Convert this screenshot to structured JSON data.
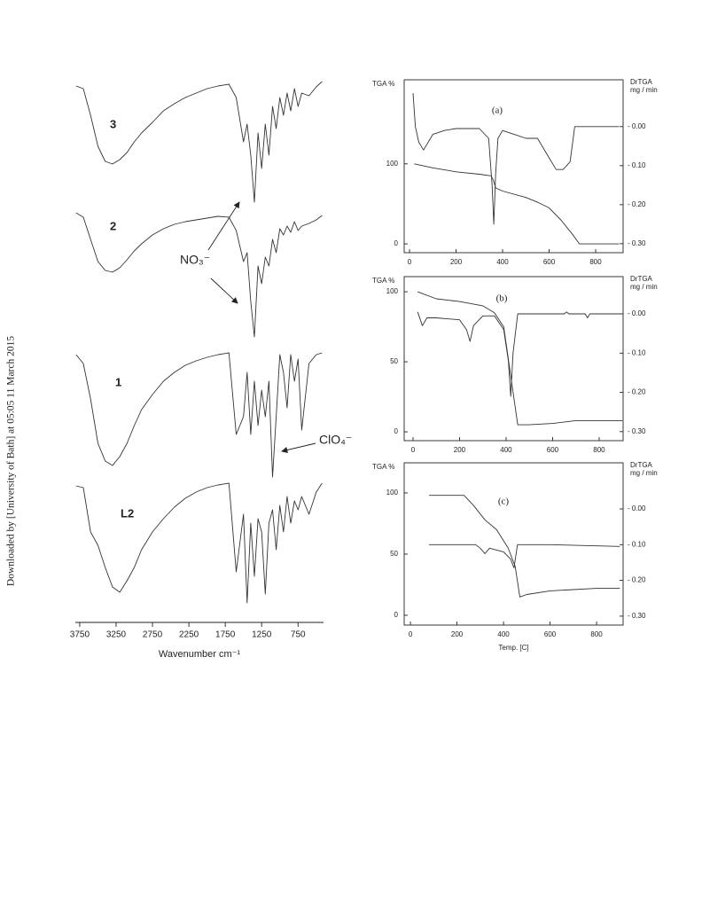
{
  "side_note": "Downloaded by [University of Bath] at 05:05 11 March 2015",
  "chart_data": [
    {
      "type": "line",
      "xlabel": "Wavenumber cm⁻¹",
      "annotations": [
        "NO₃⁻",
        "ClO₄⁻"
      ],
      "xlim": [
        3810,
        400
      ],
      "ylim": [
        0,
        612
      ],
      "xticks": [
        3750,
        3250,
        2750,
        2250,
        1750,
        1250,
        750
      ],
      "x": [
        3800,
        3700,
        3600,
        3500,
        3400,
        3300,
        3200,
        3100,
        3000,
        2900,
        2750,
        2600,
        2450,
        2300,
        2150,
        2000,
        1850,
        1700,
        1600,
        1500,
        1450,
        1400,
        1350,
        1300,
        1250,
        1200,
        1150,
        1100,
        1050,
        1000,
        950,
        900,
        850,
        800,
        750,
        700,
        600,
        500,
        420
      ],
      "series": [
        {
          "name": "3",
          "color": "#333333",
          "values": [
            605,
            602,
            572,
            537,
            520,
            517,
            522,
            530,
            542,
            552,
            564,
            577,
            585,
            592,
            597,
            602,
            605,
            607,
            592,
            542,
            562,
            527,
            474,
            552,
            512,
            562,
            527,
            582,
            557,
            592,
            572,
            597,
            577,
            602,
            582,
            597,
            594,
            604,
            610
          ]
        },
        {
          "name": "2",
          "color": "#333333",
          "values": [
            462,
            457,
            432,
            407,
            397,
            395,
            400,
            409,
            419,
            427,
            437,
            444,
            449,
            452,
            454,
            456,
            458,
            457,
            442,
            407,
            417,
            362,
            322,
            402,
            382,
            412,
            402,
            432,
            417,
            444,
            437,
            447,
            440,
            452,
            442,
            447,
            450,
            454,
            459
          ]
        },
        {
          "name": "1",
          "color": "#333333",
          "values": [
            302,
            292,
            252,
            202,
            182,
            177,
            187,
            202,
            222,
            240,
            257,
            272,
            282,
            290,
            295,
            299,
            302,
            304,
            212,
            232,
            282,
            212,
            272,
            222,
            262,
            232,
            272,
            164,
            232,
            302,
            282,
            242,
            302,
            272,
            297,
            217,
            292,
            302,
            304
          ]
        },
        {
          "name": "L2",
          "color": "#333333",
          "values": [
            154,
            152,
            102,
            87,
            62,
            40,
            34,
            47,
            62,
            82,
            102,
            117,
            130,
            140,
            147,
            152,
            155,
            157,
            57,
            122,
            22,
            112,
            52,
            117,
            102,
            32,
            112,
            127,
            82,
            132,
            102,
            142,
            112,
            137,
            127,
            142,
            122,
            147,
            157
          ]
        }
      ]
    },
    {
      "type": "line",
      "annotation": "(a)",
      "ylabel": "TGA %",
      "y2label": [
        "DrTGA",
        "mg / min"
      ],
      "xlim": [
        -23,
        918
      ],
      "ylim": [
        -11,
        205
      ],
      "y2lim": [
        -0.323,
        0.12
      ],
      "xticks": [
        0,
        200,
        400,
        600,
        800
      ],
      "yticks": [
        0,
        100
      ],
      "y2ticks": [
        {
          "value": 0,
          "label": "- 0.00"
        },
        {
          "value": -0.1,
          "label": "- 0.10"
        },
        {
          "value": -0.2,
          "label": "- 0.20"
        },
        {
          "value": -0.3,
          "label": "- 0.30"
        }
      ],
      "series": [
        {
          "color": "#333333",
          "x": [
            20,
            100,
            200,
            300,
            350,
            360,
            370,
            400,
            500,
            550,
            600,
            650,
            700,
            730,
            800,
            900
          ],
          "values": [
            100,
            95,
            90,
            87,
            85,
            80,
            70,
            66,
            58,
            52,
            45,
            30,
            12,
            0,
            0,
            0
          ]
        },
        {
          "color": "#333333",
          "axis": "y2",
          "x": [
            15,
            25,
            40,
            60,
            100,
            150,
            200,
            300,
            340,
            355,
            362,
            370,
            380,
            400,
            450,
            500,
            550,
            600,
            630,
            660,
            690,
            710,
            750,
            800,
            900
          ],
          "values": [
            0.086,
            0,
            -0.04,
            -0.06,
            -0.02,
            -0.01,
            -0.005,
            -0.005,
            -0.03,
            -0.15,
            -0.25,
            -0.12,
            -0.03,
            -0.01,
            -0.02,
            -0.03,
            -0.03,
            -0.08,
            -0.11,
            -0.11,
            -0.09,
            0,
            0,
            0,
            0
          ]
        }
      ]
    },
    {
      "type": "line",
      "annotation": "(b)",
      "ylabel": "TGA %",
      "y2label": [
        "DrTGA",
        "mg / min"
      ],
      "xlim": [
        -38,
        903
      ],
      "ylim": [
        -6.3,
        110.8
      ],
      "y2lim": [
        -0.323,
        0.095
      ],
      "xticks": [
        0,
        200,
        400,
        600,
        800
      ],
      "yticks": [
        0,
        50,
        100
      ],
      "y2ticks": [
        {
          "value": 0,
          "label": "- 0.00"
        },
        {
          "value": -0.1,
          "label": "- 0.10"
        },
        {
          "value": -0.2,
          "label": "- 0.20"
        },
        {
          "value": -0.3,
          "label": "- 0.30"
        }
      ],
      "series": [
        {
          "color": "#333333",
          "x": [
            20,
            100,
            200,
            300,
            350,
            390,
            420,
            450,
            500,
            600,
            700,
            900
          ],
          "values": [
            100,
            95,
            93,
            90,
            85,
            75,
            40,
            5,
            5,
            6,
            8,
            8
          ]
        },
        {
          "color": "#333333",
          "axis": "y2",
          "x": [
            20,
            40,
            60,
            100,
            200,
            230,
            245,
            260,
            300,
            350,
            390,
            410,
            420,
            430,
            450,
            500,
            650,
            660,
            670,
            740,
            750,
            760,
            900
          ],
          "values": [
            0.005,
            -0.03,
            -0.01,
            -0.01,
            -0.015,
            -0.04,
            -0.07,
            -0.03,
            -0.005,
            -0.005,
            -0.04,
            -0.12,
            -0.21,
            -0.1,
            0,
            0,
            0,
            0.005,
            0,
            0,
            -0.01,
            0,
            0
          ]
        }
      ]
    },
    {
      "type": "line",
      "annotation": "(c)",
      "ylabel": "TGA %",
      "y2label": [
        "DrTGA",
        "mg / min"
      ],
      "xlabel": "Temp. [C]",
      "xlim": [
        -27,
        914
      ],
      "ylim": [
        -8,
        124.6
      ],
      "y2lim": [
        -0.325,
        0.129
      ],
      "xticks": [
        0,
        200,
        400,
        600,
        800
      ],
      "yticks": [
        0,
        50,
        100
      ],
      "y2ticks": [
        {
          "value": 0,
          "label": "- 0.00"
        },
        {
          "value": -0.1,
          "label": "- 0.10"
        },
        {
          "value": -0.2,
          "label": "- 0.20"
        },
        {
          "value": -0.3,
          "label": "- 0.30"
        }
      ],
      "series": [
        {
          "color": "#333333",
          "x": [
            80,
            230,
            270,
            320,
            370,
            420,
            450,
            470,
            500,
            600,
            800,
            900
          ],
          "values": [
            98,
            98,
            90,
            78,
            70,
            55,
            40,
            15,
            17,
            20,
            22,
            22
          ]
        },
        {
          "color": "#333333",
          "axis": "y2",
          "x": [
            80,
            200,
            280,
            300,
            320,
            340,
            400,
            430,
            445,
            460,
            600,
            900
          ],
          "values": [
            -0.1,
            -0.1,
            -0.1,
            -0.11,
            -0.125,
            -0.11,
            -0.12,
            -0.14,
            -0.165,
            -0.1,
            -0.1,
            -0.105
          ]
        }
      ]
    }
  ]
}
